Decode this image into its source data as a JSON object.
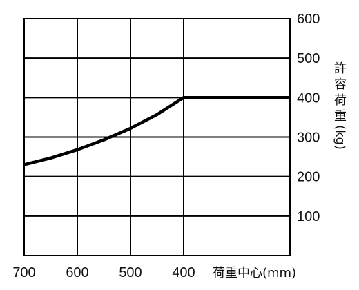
{
  "chart_data": {
    "type": "line",
    "xlabel": "荷重中心(mm)",
    "ylabel": "許容荷重(kg)",
    "x_ticks": [
      700,
      600,
      500,
      400
    ],
    "y_ticks": [
      100,
      200,
      300,
      400,
      500,
      600
    ],
    "xlim": [
      700,
      200
    ],
    "ylim": [
      0,
      600
    ],
    "x_reversed": true,
    "grid": true,
    "y_axis_position": "right",
    "series": [
      {
        "x": [
          700,
          650,
          600,
          550,
          500,
          450,
          400,
          200
        ],
        "y": [
          230,
          247,
          268,
          293,
          322,
          357,
          400,
          400
        ]
      }
    ]
  }
}
